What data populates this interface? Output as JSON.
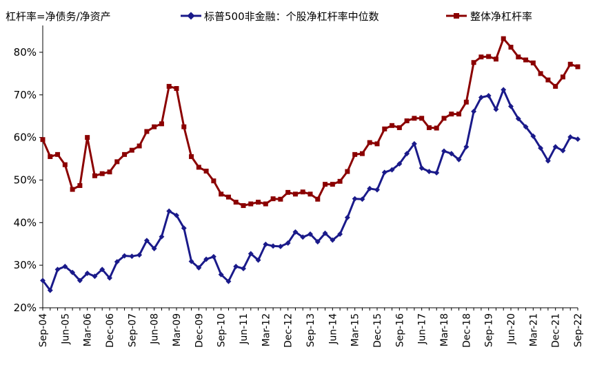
{
  "chart_data": {
    "type": "line",
    "title": "杠杆率=净债务/净资产",
    "ylim": [
      0.2,
      0.85
    ],
    "y_ticks": [
      "20%",
      "30%",
      "40%",
      "50%",
      "60%",
      "70%",
      "80%"
    ],
    "y_tick_values": [
      0.2,
      0.3,
      0.4,
      0.5,
      0.6,
      0.7,
      0.8
    ],
    "x_tick_labels": [
      "Sep-04",
      "Jun-05",
      "Mar-06",
      "Dec-06",
      "Sep-07",
      "Jun-08",
      "Mar-09",
      "Dec-09",
      "Sep-10",
      "Jun-11",
      "Mar-12",
      "Dec-12",
      "Sep-13",
      "Jun-14",
      "Mar-15",
      "Dec-15",
      "Sep-16",
      "Jun-17",
      "Mar-18",
      "Dec-18",
      "Sep-19",
      "Jun-20",
      "Mar-21",
      "Dec-21",
      "Sep-22"
    ],
    "frequency": "quarterly",
    "start": "Sep-04",
    "series": [
      {
        "name": "标普500非金融：个股净杠杆率中位数",
        "color": "#1a1a8a",
        "marker": "diamond",
        "values": [
          0.264,
          0.241,
          0.29,
          0.297,
          0.283,
          0.264,
          0.281,
          0.274,
          0.29,
          0.27,
          0.308,
          0.322,
          0.321,
          0.324,
          0.358,
          0.339,
          0.367,
          0.427,
          0.417,
          0.387,
          0.309,
          0.294,
          0.314,
          0.32,
          0.278,
          0.262,
          0.297,
          0.292,
          0.327,
          0.312,
          0.349,
          0.345,
          0.344,
          0.352,
          0.378,
          0.366,
          0.373,
          0.355,
          0.375,
          0.359,
          0.373,
          0.412,
          0.456,
          0.455,
          0.48,
          0.477,
          0.518,
          0.524,
          0.538,
          0.562,
          0.585,
          0.528,
          0.52,
          0.517,
          0.568,
          0.562,
          0.548,
          0.578,
          0.661,
          0.694,
          0.698,
          0.666,
          0.712,
          0.673,
          0.644,
          0.625,
          0.603,
          0.575,
          0.545,
          0.578,
          0.569,
          0.601,
          0.596
        ]
      },
      {
        "name": "整体净杠杆率",
        "color": "#8b0000",
        "marker": "square",
        "values": [
          0.595,
          0.555,
          0.56,
          0.536,
          0.478,
          0.487,
          0.6,
          0.51,
          0.515,
          0.519,
          0.543,
          0.56,
          0.57,
          0.58,
          0.614,
          0.625,
          0.632,
          0.72,
          0.715,
          0.625,
          0.555,
          0.53,
          0.521,
          0.498,
          0.467,
          0.46,
          0.448,
          0.44,
          0.444,
          0.448,
          0.444,
          0.456,
          0.455,
          0.471,
          0.467,
          0.472,
          0.467,
          0.455,
          0.49,
          0.49,
          0.497,
          0.52,
          0.56,
          0.562,
          0.588,
          0.585,
          0.62,
          0.628,
          0.623,
          0.639,
          0.645,
          0.645,
          0.623,
          0.622,
          0.645,
          0.655,
          0.655,
          0.683,
          0.776,
          0.789,
          0.79,
          0.784,
          0.832,
          0.812,
          0.789,
          0.782,
          0.775,
          0.75,
          0.735,
          0.72,
          0.742,
          0.772,
          0.766
        ]
      }
    ]
  }
}
